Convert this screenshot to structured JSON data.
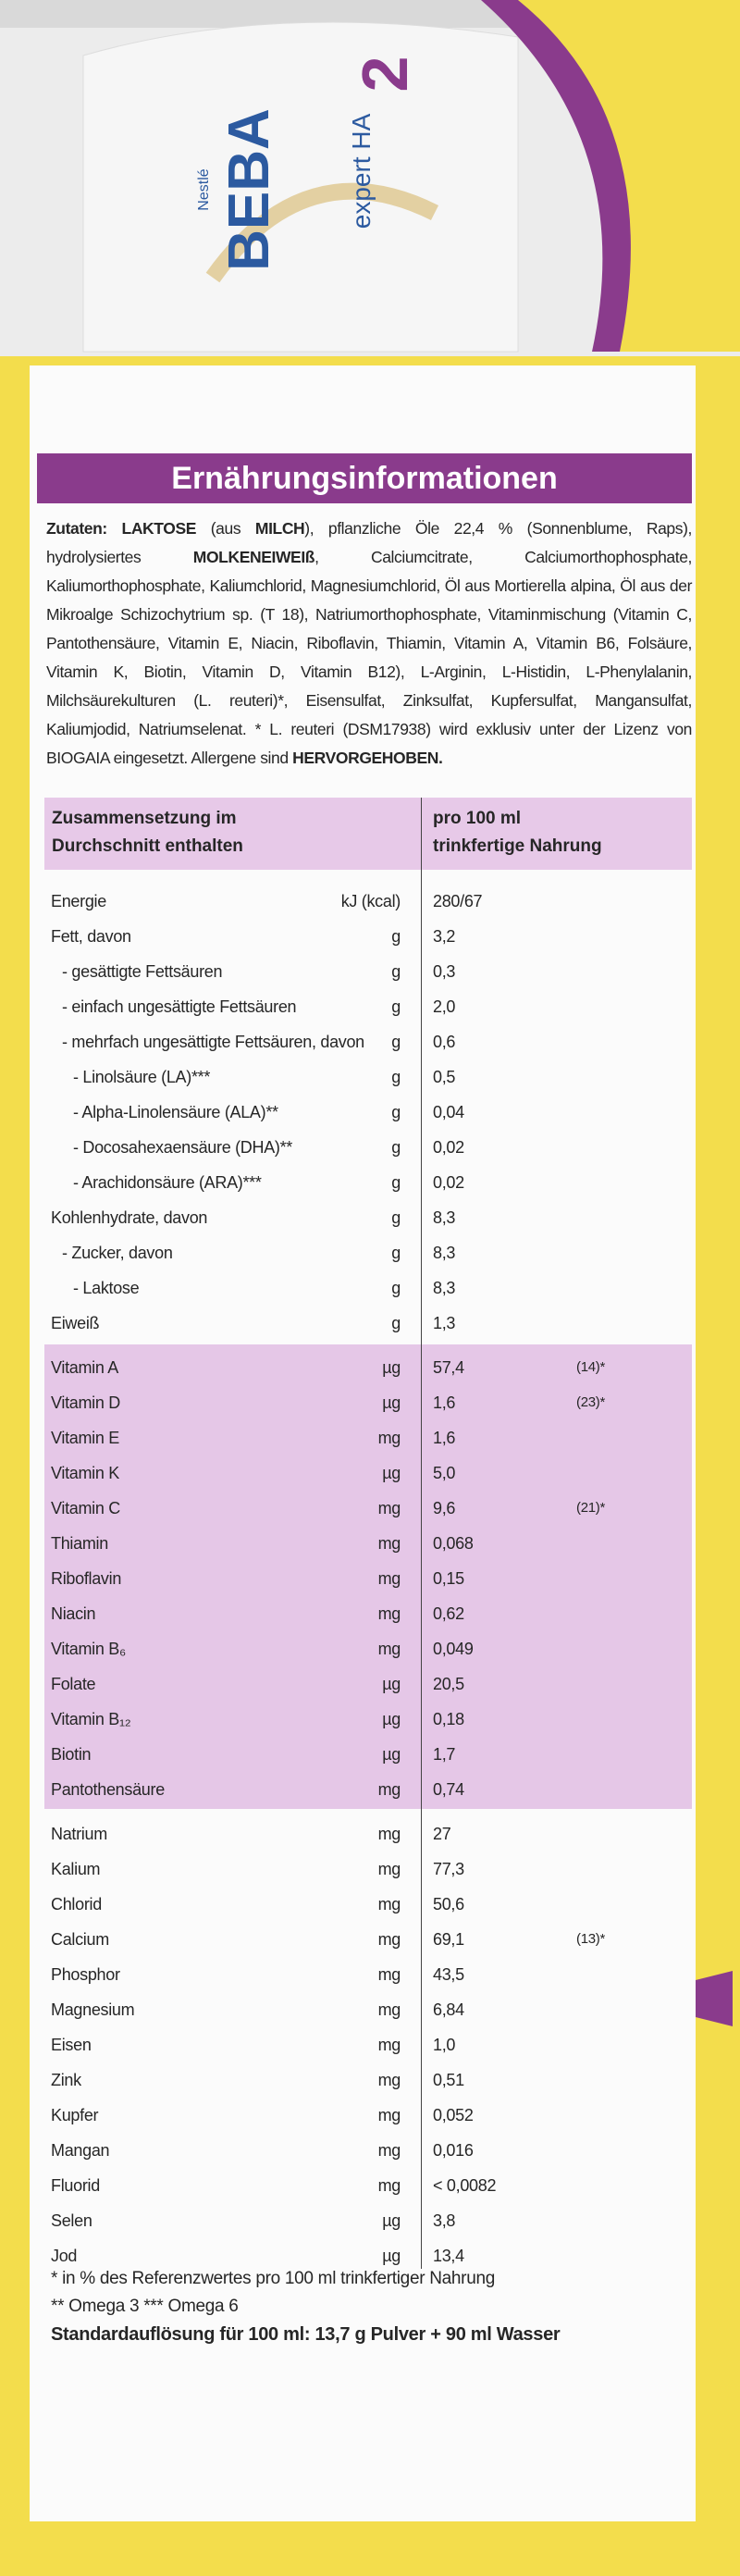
{
  "packaging": {
    "maker": "Nestlé",
    "brand": "BEBA",
    "line": "expert HA",
    "stage": "2"
  },
  "label": {
    "title": "Ernährungsinformationen",
    "ingredients": [
      {
        "text": "Zutaten: ",
        "bold": true
      },
      {
        "text": "LAKTOSE",
        "bold": true
      },
      {
        "text": " (aus ",
        "bold": false
      },
      {
        "text": "MILCH",
        "bold": true
      },
      {
        "text": "), pflanzliche Öle 22,4 % (Sonnenblume, Raps), hydrolysiertes ",
        "bold": false
      },
      {
        "text": "MOLKENEIWEIß",
        "bold": true
      },
      {
        "text": ", Calciumcitrate, Calciumorthophosphate, Kaliumorthophosphate, Kaliumchlorid, Magnesiumchlorid, Öl aus Mortierella alpina, Öl aus der Mikroalge Schizochytrium sp. (T 18), Natriumorthophosphate, Vitaminmischung (Vitamin C, Pantothensäure, Vitamin E, Niacin, Riboflavin, Thiamin, Vitamin A, Vitamin B6, Folsäure, Vitamin K, Biotin, Vitamin D, Vitamin B12), L-Arginin, L-Histidin, L-Phenylalanin, Milchsäurekulturen (L. reuteri)*, Eisensulfat, Zinksulfat, Kupfersulfat, Mangansulfat, Kaliumjodid, Natriumselenat. * L. reuteri (DSM17938) wird exklusiv unter der Lizenz von BIOGAIA eingesetzt. Allergene sind ",
        "bold": false
      },
      {
        "text": "HERVORGEHOBEN.",
        "bold": true
      }
    ]
  },
  "table": {
    "header": [
      [
        "Zusammensetzung im",
        "Durchschnitt enthalten"
      ],
      [
        "pro 100 ml",
        "trinkfertige Nahrung"
      ]
    ],
    "sections": [
      {
        "shaded": false,
        "rows": [
          {
            "name": "Energie",
            "unit": "kJ (kcal)",
            "value": "280/67",
            "level": 0
          },
          {
            "name": "Fett, davon",
            "unit": "g",
            "value": "3,2",
            "level": 0
          },
          {
            "name": "- gesättigte Fettsäuren",
            "unit": "g",
            "value": "0,3",
            "level": 1
          },
          {
            "name": "- einfach ungesättigte Fettsäuren",
            "unit": "g",
            "value": "2,0",
            "level": 1
          },
          {
            "name": "- mehrfach ungesättigte Fettsäuren, davon",
            "unit": "g",
            "value": "0,6",
            "level": 1
          },
          {
            "name": "- Linolsäure (LA)***",
            "unit": "g",
            "value": "0,5",
            "level": 2
          },
          {
            "name": "- Alpha-Linolensäure (ALA)**",
            "unit": "g",
            "value": "0,04",
            "level": 2
          },
          {
            "name": "- Docosahexaensäure (DHA)**",
            "unit": "g",
            "value": "0,02",
            "level": 2
          },
          {
            "name": "- Arachidonsäure (ARA)***",
            "unit": "g",
            "value": "0,02",
            "level": 2
          },
          {
            "name": "Kohlenhydrate, davon",
            "unit": "g",
            "value": "8,3",
            "level": 0
          },
          {
            "name": "- Zucker, davon",
            "unit": "g",
            "value": "8,3",
            "level": 1
          },
          {
            "name": "- Laktose",
            "unit": "g",
            "value": "8,3",
            "level": 2
          },
          {
            "name": "Eiweiß",
            "unit": "g",
            "value": "1,3",
            "level": 0
          }
        ]
      },
      {
        "shaded": true,
        "rows": [
          {
            "name": "Vitamin A",
            "unit": "µg",
            "value": "57,4",
            "ref": "(14)*",
            "level": 0
          },
          {
            "name": "Vitamin D",
            "unit": "µg",
            "value": "1,6",
            "ref": "(23)*",
            "level": 0
          },
          {
            "name": "Vitamin E",
            "unit": "mg",
            "value": "1,6",
            "level": 0
          },
          {
            "name": "Vitamin K",
            "unit": "µg",
            "value": "5,0",
            "level": 0
          },
          {
            "name": "Vitamin C",
            "unit": "mg",
            "value": "9,6",
            "ref": "(21)*",
            "level": 0
          },
          {
            "name": "Thiamin",
            "unit": "mg",
            "value": "0,068",
            "level": 0
          },
          {
            "name": "Riboflavin",
            "unit": "mg",
            "value": "0,15",
            "level": 0
          },
          {
            "name": "Niacin",
            "unit": "mg",
            "value": "0,62",
            "level": 0
          },
          {
            "name": "Vitamin B₆",
            "unit": "mg",
            "value": "0,049",
            "level": 0
          },
          {
            "name": "Folate",
            "unit": "µg",
            "value": "20,5",
            "level": 0
          },
          {
            "name": "Vitamin B₁₂",
            "unit": "µg",
            "value": "0,18",
            "level": 0
          },
          {
            "name": "Biotin",
            "unit": "µg",
            "value": "1,7",
            "level": 0
          },
          {
            "name": "Pantothensäure",
            "unit": "mg",
            "value": "0,74",
            "level": 0
          }
        ]
      },
      {
        "shaded": false,
        "rows": [
          {
            "name": "Natrium",
            "unit": "mg",
            "value": "27",
            "level": 0
          },
          {
            "name": "Kalium",
            "unit": "mg",
            "value": "77,3",
            "level": 0
          },
          {
            "name": "Chlorid",
            "unit": "mg",
            "value": "50,6",
            "level": 0
          },
          {
            "name": "Calcium",
            "unit": "mg",
            "value": "69,1",
            "ref": "(13)*",
            "level": 0
          },
          {
            "name": "Phosphor",
            "unit": "mg",
            "value": "43,5",
            "level": 0
          },
          {
            "name": "Magnesium",
            "unit": "mg",
            "value": "6,84",
            "level": 0
          },
          {
            "name": "Eisen",
            "unit": "mg",
            "value": "1,0",
            "level": 0
          },
          {
            "name": "Zink",
            "unit": "mg",
            "value": "0,51",
            "level": 0
          },
          {
            "name": "Kupfer",
            "unit": "mg",
            "value": "0,052",
            "level": 0
          },
          {
            "name": "Mangan",
            "unit": "mg",
            "value": "0,016",
            "level": 0
          },
          {
            "name": "Fluorid",
            "unit": "mg",
            "value": "< 0,0082",
            "level": 0
          },
          {
            "name": "Selen",
            "unit": "µg",
            "value": "3,8",
            "level": 0
          },
          {
            "name": "Jod",
            "unit": "µg",
            "value": "13,4",
            "level": 0
          }
        ]
      }
    ]
  },
  "footnotes": [
    {
      "text": "* in % des Referenzwertes pro 100 ml trinkfertiger Nahrung",
      "bold": false
    },
    {
      "text": "** Omega 3 *** Omega 6",
      "bold": false
    },
    {
      "text": "Standardauflösung für 100 ml: 13,7 g Pulver + 90 ml Wasser",
      "bold": true
    }
  ]
}
